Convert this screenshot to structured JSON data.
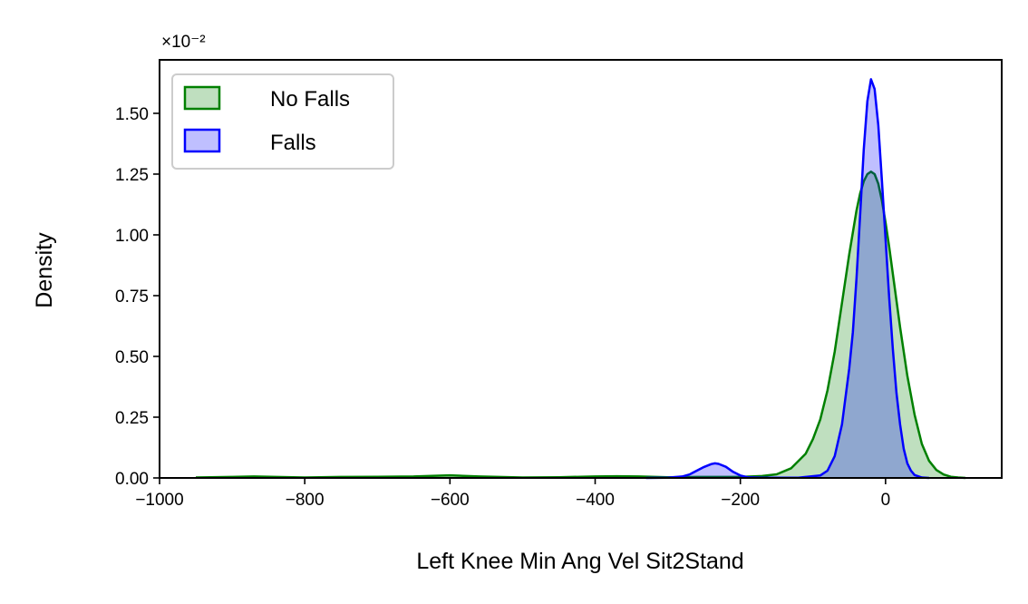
{
  "chart_data": {
    "type": "area",
    "title": "",
    "xlabel": "Left Knee Min Ang Vel Sit2Stand",
    "ylabel": "Density",
    "y_offset_label": "×10⁻²",
    "xlim": [
      -1000,
      160
    ],
    "ylim": [
      0,
      1.72
    ],
    "xticks": [
      -1000,
      -800,
      -600,
      -400,
      -200,
      0
    ],
    "xtick_labels": [
      "−1000",
      "−800",
      "−600",
      "−400",
      "−200",
      "0"
    ],
    "yticks": [
      0,
      0.25,
      0.5,
      0.75,
      1.0,
      1.25,
      1.5
    ],
    "ytick_labels": [
      "0.00",
      "0.25",
      "0.50",
      "0.75",
      "1.00",
      "1.25",
      "1.50"
    ],
    "grid": false,
    "legend_position": "top-left",
    "series": [
      {
        "name": "No Falls",
        "line_color": "#008000",
        "fill_color": "#008000",
        "x": [
          -950,
          -900,
          -870,
          -840,
          -800,
          -750,
          -700,
          -650,
          -600,
          -560,
          -500,
          -450,
          -400,
          -370,
          -340,
          -300,
          -260,
          -230,
          -200,
          -170,
          -150,
          -130,
          -110,
          -100,
          -90,
          -80,
          -70,
          -60,
          -50,
          -40,
          -35,
          -30,
          -25,
          -20,
          -15,
          -10,
          -5,
          0,
          5,
          10,
          20,
          30,
          40,
          50,
          60,
          70,
          80,
          90,
          100,
          110
        ],
        "y": [
          0.002,
          0.004,
          0.006,
          0.004,
          0.002,
          0.004,
          0.005,
          0.006,
          0.011,
          0.006,
          0.002,
          0.003,
          0.006,
          0.007,
          0.006,
          0.003,
          0.004,
          0.004,
          0.004,
          0.008,
          0.015,
          0.04,
          0.1,
          0.16,
          0.24,
          0.36,
          0.52,
          0.72,
          0.92,
          1.1,
          1.17,
          1.22,
          1.25,
          1.26,
          1.25,
          1.21,
          1.14,
          1.05,
          0.95,
          0.84,
          0.62,
          0.42,
          0.26,
          0.14,
          0.07,
          0.033,
          0.014,
          0.005,
          0.002,
          0.0
        ]
      },
      {
        "name": "Falls",
        "line_color": "#0000ff",
        "fill_color": "#0000ff",
        "x": [
          -330,
          -300,
          -280,
          -270,
          -260,
          -250,
          -240,
          -235,
          -230,
          -220,
          -210,
          -200,
          -190,
          -170,
          -120,
          -90,
          -80,
          -70,
          -60,
          -50,
          -45,
          -40,
          -35,
          -30,
          -25,
          -20,
          -15,
          -10,
          -5,
          0,
          5,
          10,
          15,
          20,
          25,
          30,
          35,
          40,
          50,
          60
        ],
        "y": [
          0.0,
          0.001,
          0.006,
          0.014,
          0.03,
          0.045,
          0.057,
          0.06,
          0.058,
          0.046,
          0.025,
          0.01,
          0.003,
          0.001,
          0.001,
          0.01,
          0.03,
          0.09,
          0.22,
          0.45,
          0.6,
          0.82,
          1.08,
          1.35,
          1.55,
          1.64,
          1.6,
          1.45,
          1.22,
          0.98,
          0.74,
          0.53,
          0.35,
          0.22,
          0.12,
          0.06,
          0.03,
          0.012,
          0.002,
          0.0
        ]
      }
    ]
  }
}
